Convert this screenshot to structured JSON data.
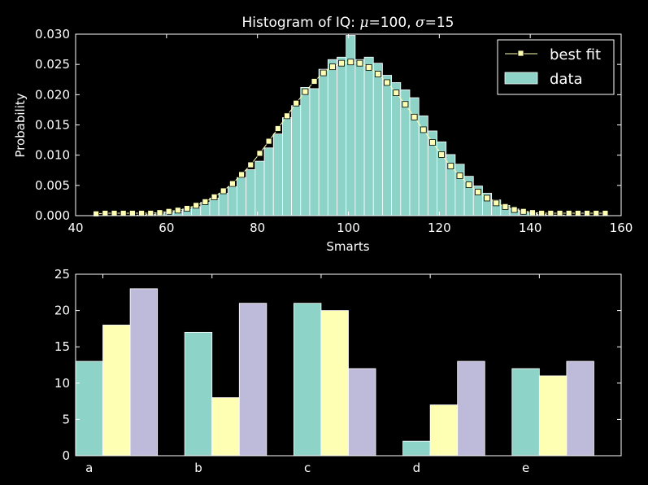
{
  "colors": {
    "background": "#000000",
    "axes": "#ffffff",
    "teal": "#8dd3c7",
    "yellow": "#ffffb3",
    "lavender": "#bebada"
  },
  "chart_data": [
    {
      "type": "bar",
      "title": "Histogram of IQ: ",
      "title_math": "μ=100, σ=15",
      "title_mu": "μ",
      "title_mu_value": "=100",
      "title_sep": ", ",
      "title_sigma": "σ",
      "title_sigma_value": "=15",
      "xlabel": "Smarts",
      "ylabel": "Probability",
      "xlim": [
        40,
        160
      ],
      "ylim": [
        0,
        0.03
      ],
      "xticks": [
        "40",
        "60",
        "80",
        "100",
        "120",
        "140",
        "160"
      ],
      "yticks": [
        "0.000",
        "0.005",
        "0.010",
        "0.015",
        "0.020",
        "0.025",
        "0.030"
      ],
      "legend": {
        "placement": "top-right",
        "line_label": "best fit",
        "bar_label": "data"
      },
      "bins": [
        43.5,
        45.5,
        47.5,
        49.5,
        51.5,
        53.5,
        55.5,
        57.5,
        59.5,
        61.5,
        63.5,
        65.5,
        67.5,
        69.5,
        71.5,
        73.5,
        75.5,
        77.5,
        79.5,
        81.5,
        83.5,
        85.5,
        87.5,
        89.5,
        91.5,
        93.5,
        95.5,
        97.5,
        99.5,
        101.5,
        103.5,
        105.5,
        107.5,
        109.5,
        111.5,
        113.5,
        115.5,
        117.5,
        119.5,
        121.5,
        123.5,
        125.5,
        127.5,
        129.5,
        131.5,
        133.5,
        135.5,
        137.5,
        139.5,
        141.5,
        143.5,
        145.5,
        147.5,
        149.5,
        151.5,
        153.5,
        155.5,
        157.5
      ],
      "hist_values": [
        0.0,
        0.0,
        0.0,
        0.0,
        0.0,
        0.0001,
        0.0002,
        0.0003,
        0.0005,
        0.0008,
        0.0011,
        0.0015,
        0.0022,
        0.0029,
        0.0037,
        0.0048,
        0.0063,
        0.0076,
        0.009,
        0.0112,
        0.0135,
        0.0162,
        0.0182,
        0.0212,
        0.021,
        0.0242,
        0.0258,
        0.0262,
        0.0298,
        0.0258,
        0.0262,
        0.0252,
        0.0232,
        0.022,
        0.0208,
        0.0195,
        0.0165,
        0.014,
        0.0122,
        0.0101,
        0.0085,
        0.0065,
        0.0049,
        0.0037,
        0.0026,
        0.0017,
        0.0011,
        0.0007,
        0.0004,
        0.0002,
        0.0001,
        0.0001,
        0.0,
        0.0,
        0.0,
        0.0,
        0.0
      ],
      "fit_x": [
        44.5,
        46.5,
        48.5,
        50.5,
        52.5,
        54.5,
        56.5,
        58.5,
        60.5,
        62.5,
        64.5,
        66.5,
        68.5,
        70.5,
        72.5,
        74.5,
        76.5,
        78.5,
        80.5,
        82.5,
        84.5,
        86.5,
        88.5,
        90.5,
        92.5,
        94.5,
        96.5,
        98.5,
        100.5,
        102.5,
        104.5,
        106.5,
        108.5,
        110.5,
        112.5,
        114.5,
        116.5,
        118.5,
        120.5,
        122.5,
        124.5,
        126.5,
        128.5,
        130.5,
        132.5,
        134.5,
        136.5,
        138.5,
        140.5,
        142.5,
        144.5,
        146.5,
        148.5,
        150.5,
        152.5,
        154.5,
        156.5
      ],
      "fit_y": [
        0.0003,
        0.0004,
        0.0004,
        0.0004,
        0.0004,
        0.0004,
        0.0004,
        0.0005,
        0.0007,
        0.0009,
        0.0012,
        0.0017,
        0.0023,
        0.0031,
        0.0041,
        0.0053,
        0.0068,
        0.0084,
        0.0103,
        0.0123,
        0.0144,
        0.0165,
        0.0186,
        0.0205,
        0.0222,
        0.0236,
        0.0246,
        0.0252,
        0.0254,
        0.0252,
        0.0245,
        0.0234,
        0.022,
        0.0203,
        0.0184,
        0.0163,
        0.0142,
        0.0121,
        0.0101,
        0.0082,
        0.0066,
        0.0051,
        0.0039,
        0.0029,
        0.0021,
        0.0015,
        0.001,
        0.0007,
        0.0005,
        0.0004,
        0.0004,
        0.0004,
        0.0004,
        0.0004,
        0.0004,
        0.0004,
        0.0004
      ]
    },
    {
      "type": "bar",
      "categories": [
        "a",
        "b",
        "c",
        "d",
        "e"
      ],
      "ylim": [
        0,
        25
      ],
      "yticks": [
        "0",
        "5",
        "10",
        "15",
        "20",
        "25"
      ],
      "series": [
        {
          "values": [
            13,
            17,
            21,
            2,
            12
          ]
        },
        {
          "values": [
            18,
            8,
            20,
            7,
            11
          ]
        },
        {
          "values": [
            23,
            21,
            12,
            13,
            13
          ]
        }
      ]
    }
  ]
}
